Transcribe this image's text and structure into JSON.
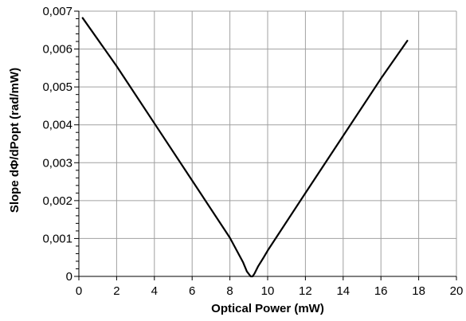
{
  "chart_data": {
    "type": "line",
    "title": "",
    "xlabel": "Optical Power (mW)",
    "ylabel": "Slope dΦ/dPopt (rad/mW)",
    "xlim": [
      0,
      20
    ],
    "ylim": [
      0,
      0.007
    ],
    "x_ticks": [
      0,
      2,
      4,
      6,
      8,
      10,
      12,
      14,
      16,
      18,
      20
    ],
    "x_tick_labels": [
      "0",
      "2",
      "4",
      "6",
      "8",
      "10",
      "12",
      "14",
      "16",
      "18",
      "20"
    ],
    "y_ticks": [
      0,
      0.001,
      0.002,
      0.003,
      0.004,
      0.005,
      0.006,
      0.007
    ],
    "y_tick_labels": [
      "0",
      "0,001",
      "0,002",
      "0,003",
      "0,004",
      "0,005",
      "0,006",
      "0,007"
    ],
    "y_minor_step": 0.0002,
    "grid": true,
    "legend": "none",
    "colors": {
      "line": "#000000",
      "grid": "#a0a0a0",
      "axis": "#000000",
      "background": "#ffffff"
    },
    "series": [
      {
        "x": [
          0.2,
          2,
          4,
          6,
          8,
          8.7,
          8.9,
          9.1,
          9.2,
          9.3,
          9.5,
          9.8,
          10,
          12,
          14,
          16,
          17.4
        ],
        "y": [
          0.00682,
          0.00555,
          0.00404,
          0.00253,
          0.00102,
          0.00037,
          0.00013,
          0.0,
          0.0,
          7e-05,
          0.00027,
          0.00051,
          0.00068,
          0.0022,
          0.00371,
          0.00522,
          0.00622
        ]
      }
    ]
  }
}
